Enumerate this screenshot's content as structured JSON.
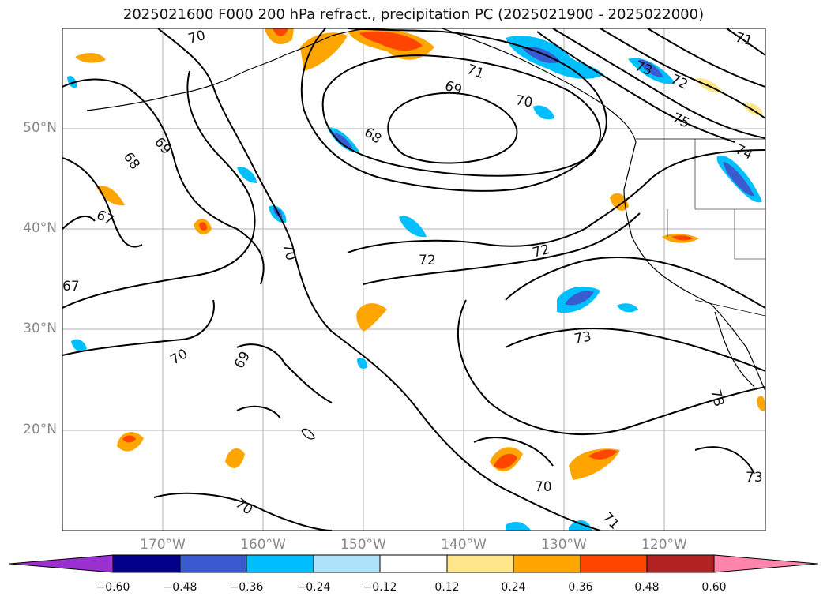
{
  "title": "2025021600 F000 200 hPa refract., precipitation PC (2025021900 - 2025022000)",
  "lat_ticks": [
    "50°N",
    "40°N",
    "30°N",
    "20°N"
  ],
  "lon_ticks": [
    "170°W",
    "160°W",
    "150°W",
    "140°W",
    "130°W",
    "120°W"
  ],
  "contour_labels": [
    "70",
    "71",
    "72",
    "73",
    "69",
    "70",
    "75",
    "74",
    "68",
    "69",
    "68",
    "67",
    "70",
    "72",
    "72",
    "67",
    "73",
    "70",
    "69",
    "73",
    "70",
    "73",
    "70",
    "71",
    "71"
  ],
  "colorbar": {
    "labels": [
      "−0.60",
      "−0.48",
      "−0.36",
      "−0.24",
      "−0.12",
      "0.12",
      "0.24",
      "0.36",
      "0.48",
      "0.60"
    ],
    "colors": [
      "#9b30d0",
      "#00008b",
      "#3a5bd0",
      "#00bfff",
      "#aee4fb",
      "#ffffff",
      "#ffe68a",
      "#ffa500",
      "#ff4500",
      "#b22222",
      "#ff85aa"
    ]
  }
}
